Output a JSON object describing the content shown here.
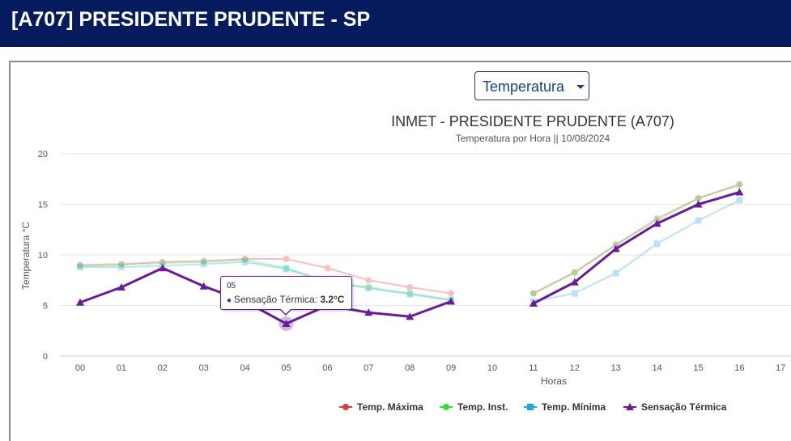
{
  "header": {
    "title": "[A707] PRESIDENTE PRUDENTE - SP"
  },
  "selector": {
    "value": "Temperatura"
  },
  "tooltip": {
    "hour": "05",
    "series_label": "Sensação Térmica: ",
    "value": "3.2°C"
  },
  "chart_data": {
    "type": "line",
    "title": "INMET - PRESIDENTE PRUDENTE (A707)",
    "subtitle": "Temperatura por Hora || 10/08/2024",
    "xlabel": "Horas",
    "ylabel": "Temperatura °C",
    "ylim": [
      0,
      20
    ],
    "yticks": [
      "0",
      "5",
      "10",
      "15",
      "20"
    ],
    "categories": [
      "00",
      "01",
      "02",
      "03",
      "04",
      "05",
      "06",
      "07",
      "08",
      "09",
      "10",
      "11",
      "12",
      "13",
      "14",
      "15",
      "16",
      "17"
    ],
    "grid": true,
    "legend": "bottom",
    "series": [
      {
        "name": "Temp. Máxima",
        "color": "#e53935",
        "values": [
          9.0,
          9.1,
          9.3,
          9.4,
          9.6,
          9.6,
          8.7,
          7.5,
          6.8,
          6.2,
          null,
          6.2,
          8.3,
          11.0,
          13.6,
          15.6,
          17.0,
          null
        ]
      },
      {
        "name": "Temp. Inst.",
        "color": "#33dd33",
        "values": [
          8.9,
          9.0,
          9.2,
          9.3,
          9.5,
          8.7,
          7.4,
          6.8,
          6.2,
          5.6,
          null,
          6.2,
          8.2,
          11.0,
          13.4,
          15.6,
          16.9,
          null
        ]
      },
      {
        "name": "Temp. Mínima",
        "color": "#1ba9e6",
        "values": [
          8.8,
          8.8,
          8.9,
          9.1,
          9.3,
          8.6,
          7.3,
          6.7,
          6.1,
          5.5,
          null,
          5.4,
          6.2,
          8.2,
          11.1,
          13.4,
          15.4,
          null
        ]
      },
      {
        "name": "Sensação Térmica",
        "color": "#6a1b9a",
        "values": [
          5.3,
          6.8,
          8.7,
          6.9,
          5.4,
          3.2,
          5.0,
          4.3,
          3.9,
          5.4,
          null,
          5.2,
          7.3,
          10.6,
          13.1,
          15.0,
          16.2,
          null
        ]
      }
    ]
  }
}
